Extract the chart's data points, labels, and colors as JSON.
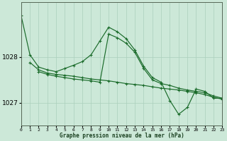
{
  "xlabel": "Graphe pression niveau de la mer (hPa)",
  "bg_color": "#cce8d8",
  "line_color": "#1a6b2a",
  "grid_color": "#aacfbc",
  "ylim": [
    1026.5,
    1029.2
  ],
  "yticks": [
    1027,
    1028
  ],
  "xlim": [
    0,
    23
  ],
  "line1_x": [
    0,
    1,
    2,
    3,
    4,
    5,
    6,
    7,
    8,
    9,
    10,
    11,
    12,
    13,
    14,
    15,
    16,
    17,
    18,
    19,
    20,
    21,
    22,
    23
  ],
  "line1_y": [
    1028.9,
    1028.05,
    1027.78,
    1027.72,
    1027.68,
    1027.75,
    1027.82,
    1027.9,
    1028.05,
    1028.35,
    1028.65,
    1028.55,
    1028.4,
    1028.15,
    1027.8,
    1027.55,
    1027.45,
    1027.05,
    1026.75,
    1026.9,
    1027.3,
    1027.25,
    1027.1,
    1027.1
  ],
  "line2_x": [
    1,
    2,
    3,
    4,
    5,
    6,
    7,
    8,
    9,
    10,
    11,
    12,
    13,
    14,
    15,
    16,
    17,
    18,
    19,
    20,
    21,
    22,
    23
  ],
  "line2_y": [
    1027.88,
    1027.72,
    1027.65,
    1027.62,
    1027.6,
    1027.58,
    1027.55,
    1027.52,
    1027.5,
    1027.48,
    1027.45,
    1027.42,
    1027.4,
    1027.38,
    1027.35,
    1027.32,
    1027.3,
    1027.28,
    1027.25,
    1027.22,
    1027.18,
    1027.12,
    1027.08
  ],
  "line3_x": [
    2,
    3,
    4,
    5,
    6,
    7,
    8,
    9,
    10,
    11,
    12,
    13,
    14,
    15,
    16,
    17,
    18,
    19,
    20,
    21,
    22,
    23
  ],
  "line3_y": [
    1027.68,
    1027.62,
    1027.58,
    1027.55,
    1027.52,
    1027.5,
    1027.48,
    1027.45,
    1028.5,
    1028.42,
    1028.3,
    1028.1,
    1027.75,
    1027.5,
    1027.42,
    1027.38,
    1027.32,
    1027.28,
    1027.25,
    1027.22,
    1027.15,
    1027.1
  ]
}
